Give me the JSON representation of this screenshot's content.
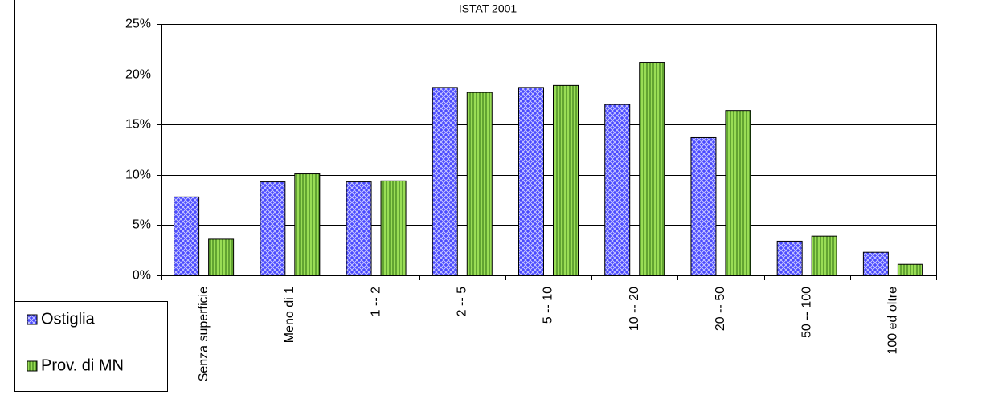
{
  "chart_data": {
    "type": "bar",
    "title": "ISTAT 2001",
    "categories": [
      "Senza superficie",
      "Meno di 1",
      "1 -- 2",
      "2 -- 5",
      "5 -- 10",
      "10 -- 20",
      "20 -- 50",
      "50 -- 100",
      "100 ed oltre"
    ],
    "series": [
      {
        "name": "Ostiglia",
        "color": "#4a4aff",
        "values": [
          7.8,
          9.3,
          9.3,
          18.7,
          18.7,
          17.0,
          13.7,
          3.4,
          2.3
        ]
      },
      {
        "name": "Prov. di MN",
        "color": "#99dd55",
        "values": [
          3.6,
          10.1,
          9.4,
          18.2,
          18.9,
          21.2,
          16.4,
          3.9,
          1.1
        ]
      }
    ],
    "ylim": [
      0,
      25
    ],
    "yticks": [
      {
        "value": 0,
        "label": "0%"
      },
      {
        "value": 5,
        "label": "5%"
      },
      {
        "value": 10,
        "label": "10%"
      },
      {
        "value": 15,
        "label": "15%"
      },
      {
        "value": 20,
        "label": "20%"
      },
      {
        "value": 25,
        "label": "25%"
      }
    ],
    "grid": true,
    "legend": "bottom-left"
  }
}
